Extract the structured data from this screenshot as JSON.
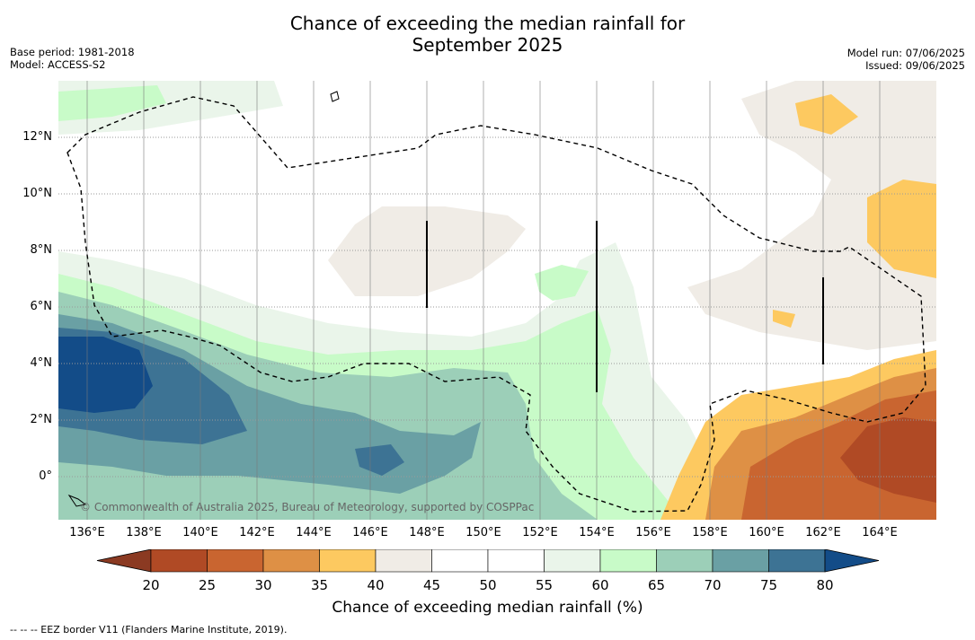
{
  "title_line1": "Chance of exceeding the median rainfall for",
  "title_line2": "September 2025",
  "base_period": "Base period: 1981-2018",
  "model": "Model: ACCESS-S2",
  "model_run": "Model run: 07/06/2025",
  "issued": "Issued: 09/06/2025",
  "lat_labels": [
    "12°N",
    "10°N",
    "8°N",
    "6°N",
    "4°N",
    "2°N",
    "0°"
  ],
  "lon_labels": [
    "136°E",
    "138°E",
    "140°E",
    "142°E",
    "144°E",
    "146°E",
    "148°E",
    "150°E",
    "152°E",
    "154°E",
    "156°E",
    "158°E",
    "160°E",
    "162°E",
    "164°E"
  ],
  "copyright": "© Commonwealth of Australia 2025, Bureau of Meteorology, supported by COSPPac",
  "colorbar": {
    "ticks": [
      "20",
      "25",
      "30",
      "35",
      "40",
      "45",
      "50",
      "55",
      "60",
      "65",
      "70",
      "75",
      "80"
    ],
    "colors": {
      "under": "#8b3a22",
      "bins": [
        "#b04a25",
        "#c96530",
        "#de9045",
        "#fdc960",
        "#f0ece6",
        "#ffffff",
        "#ffffff",
        "#eaf5ea",
        "#c8fbc8",
        "#9ccfb8",
        "#6aa0a4",
        "#3d7394"
      ],
      "over": "#134c88"
    },
    "label": "Chance of exceeding median rainfall (%)"
  },
  "footnote": "--  --  -- EEZ border V11 (Flanders Marine Institute, 2019)."
}
